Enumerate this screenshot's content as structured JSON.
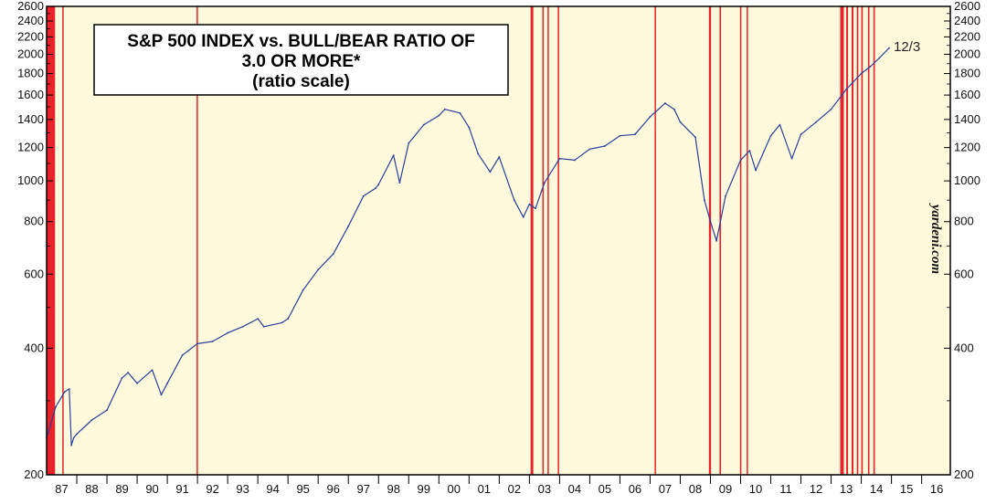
{
  "chart_data": {
    "type": "line",
    "title": "S&P 500 INDEX vs. BULL/BEAR RATIO OF",
    "title_line2": "3.0 OR MORE*",
    "subtitle": "(ratio scale)",
    "y_scale": "log",
    "ylim": [
      200,
      2600
    ],
    "y_ticks": [
      200,
      400,
      600,
      800,
      1000,
      1200,
      1400,
      1600,
      1800,
      2000,
      2200,
      2400,
      2600
    ],
    "x_range": [
      1987.0,
      2016.95
    ],
    "x_tick_labels": [
      "87",
      "88",
      "89",
      "90",
      "91",
      "92",
      "93",
      "94",
      "95",
      "96",
      "97",
      "98",
      "99",
      "00",
      "01",
      "02",
      "03",
      "04",
      "05",
      "06",
      "07",
      "08",
      "09",
      "10",
      "11",
      "12",
      "13",
      "14",
      "15",
      "16"
    ],
    "watermark": "yardeni.com",
    "annotation": "12/3",
    "grid": false,
    "colors": {
      "background": "#fdf9dc",
      "line": "#2b3f9c",
      "highlight": "#e8232b",
      "frame": "#000000"
    },
    "series": [
      {
        "x": [
          1987.0,
          1987.3,
          1987.6,
          1987.75,
          1987.82,
          1987.9,
          1988.0,
          1988.5,
          1989.0,
          1989.5,
          1989.7,
          1990.0,
          1990.5,
          1990.8,
          1991.0,
          1991.5,
          1992.0,
          1992.5,
          1993.0,
          1993.5,
          1994.0,
          1994.2,
          1994.8,
          1995.0,
          1995.5,
          1996.0,
          1996.5,
          1997.0,
          1997.5,
          1997.9,
          1998.0,
          1998.5,
          1998.7,
          1999.0,
          1999.5,
          2000.0,
          2000.2,
          2000.7,
          2001.0,
          2001.3,
          2001.7,
          2002.0,
          2002.5,
          2002.8,
          2003.0,
          2003.2,
          2003.5,
          2004.0,
          2004.5,
          2005.0,
          2005.5,
          2006.0,
          2006.5,
          2007.0,
          2007.5,
          2007.8,
          2008.0,
          2008.5,
          2008.8,
          2009.0,
          2009.2,
          2009.5,
          2010.0,
          2010.3,
          2010.5,
          2011.0,
          2011.3,
          2011.7,
          2012.0,
          2012.5,
          2013.0,
          2013.5,
          2014.0,
          2014.3,
          2014.6,
          2014.92
        ],
        "y": [
          245,
          290,
          315,
          320,
          235,
          245,
          250,
          270,
          285,
          340,
          350,
          330,
          355,
          310,
          330,
          385,
          410,
          415,
          435,
          450,
          470,
          450,
          460,
          470,
          550,
          615,
          670,
          780,
          920,
          960,
          980,
          1150,
          990,
          1230,
          1360,
          1430,
          1480,
          1450,
          1340,
          1160,
          1050,
          1140,
          900,
          820,
          880,
          860,
          990,
          1130,
          1120,
          1190,
          1210,
          1280,
          1290,
          1420,
          1530,
          1480,
          1380,
          1270,
          900,
          800,
          720,
          920,
          1120,
          1180,
          1060,
          1280,
          1360,
          1130,
          1290,
          1380,
          1480,
          1650,
          1800,
          1870,
          1960,
          2070
        ]
      }
    ],
    "highlight_bands": [
      [
        1987.0,
        1987.28
      ],
      [
        1987.52,
        1987.55
      ],
      [
        1991.97,
        1992.0
      ],
      [
        2003.04,
        2003.13
      ],
      [
        2003.43,
        2003.46
      ],
      [
        2003.6,
        2003.63
      ],
      [
        2003.94,
        2003.97
      ],
      [
        2007.15,
        2007.17
      ],
      [
        2008.95,
        2009.02
      ],
      [
        2009.3,
        2009.35
      ],
      [
        2009.98,
        2010.0
      ],
      [
        2010.2,
        2010.22
      ],
      [
        2013.3,
        2013.42
      ],
      [
        2013.5,
        2013.56
      ],
      [
        2013.68,
        2013.74
      ],
      [
        2013.85,
        2013.9
      ],
      [
        2014.0,
        2014.05
      ],
      [
        2014.22,
        2014.27
      ],
      [
        2014.4,
        2014.45
      ]
    ]
  }
}
